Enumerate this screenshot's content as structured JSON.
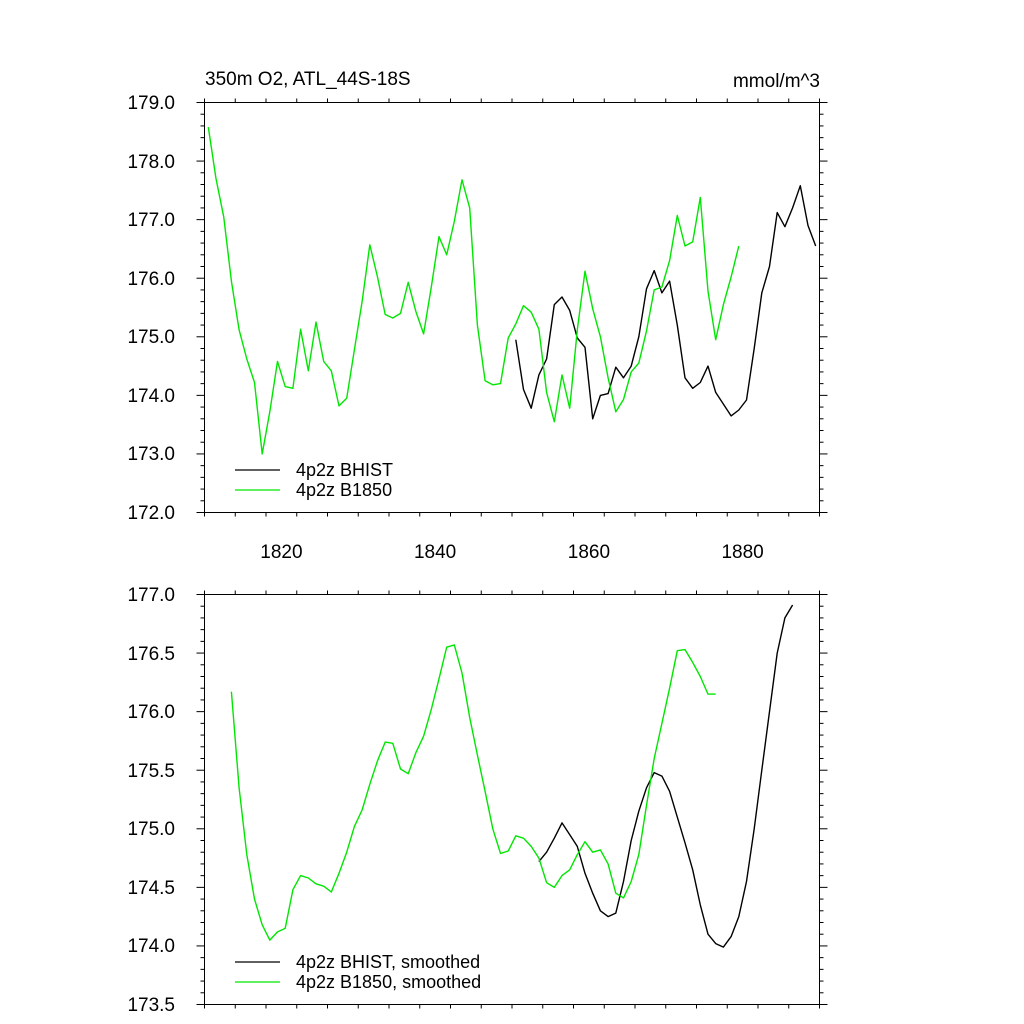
{
  "chart_data": [
    {
      "type": "line",
      "title": "350m O2, ATL_44S-18S",
      "units": "mmol/m^3",
      "xlim": [
        1810,
        1890
      ],
      "ylim": [
        172.0,
        179.0
      ],
      "xticks": [
        1820,
        1840,
        1860,
        1880
      ],
      "xtick_labels": [
        "1820",
        "1840",
        "1860",
        "1880"
      ],
      "yticks": [
        172.0,
        173.0,
        174.0,
        175.0,
        176.0,
        177.0,
        178.0,
        179.0
      ],
      "ytick_labels": [
        "172.0",
        "173.0",
        "174.0",
        "175.0",
        "176.0",
        "177.0",
        "178.0",
        "179.0"
      ],
      "series": [
        {
          "name": "4p2z BHIST",
          "color": "#000000",
          "x": [
            1850.5,
            1851.5,
            1852.5,
            1853.5,
            1854.5,
            1855.5,
            1856.5,
            1857.5,
            1858.5,
            1859.5,
            1860.5,
            1861.5,
            1862.5,
            1863.5,
            1864.5,
            1865.5,
            1866.5,
            1867.5,
            1868.5,
            1869.5,
            1870.5,
            1871.5,
            1872.5,
            1873.5,
            1874.5,
            1875.5,
            1876.5,
            1877.5,
            1878.5,
            1879.5,
            1880.5,
            1881.5,
            1882.5,
            1883.5,
            1884.5,
            1885.5,
            1886.5,
            1887.5,
            1888.5,
            1889.5
          ],
          "values": [
            174.95,
            174.1,
            173.78,
            174.35,
            174.62,
            175.55,
            175.68,
            175.45,
            174.98,
            174.82,
            173.6,
            174.0,
            174.03,
            174.48,
            174.3,
            174.5,
            175.0,
            175.82,
            176.13,
            175.75,
            175.95,
            175.2,
            174.3,
            174.12,
            174.22,
            174.5,
            174.05,
            173.85,
            173.65,
            173.75,
            173.92,
            174.8,
            175.75,
            176.2,
            177.12,
            176.88,
            177.2,
            177.58,
            176.9,
            176.55
          ]
        },
        {
          "name": "4p2z B1850",
          "color": "#00e600",
          "x": [
            1810.5,
            1811.5,
            1812.5,
            1813.5,
            1814.5,
            1815.5,
            1816.5,
            1817.5,
            1818.5,
            1819.5,
            1820.5,
            1821.5,
            1822.5,
            1823.5,
            1824.5,
            1825.5,
            1826.5,
            1827.5,
            1828.5,
            1829.5,
            1830.5,
            1831.5,
            1832.5,
            1833.5,
            1834.5,
            1835.5,
            1836.5,
            1837.5,
            1838.5,
            1839.5,
            1840.5,
            1841.5,
            1842.5,
            1843.5,
            1844.5,
            1845.5,
            1846.5,
            1847.5,
            1848.5,
            1849.5,
            1850.5,
            1851.5,
            1852.5,
            1853.5,
            1854.5,
            1855.5,
            1856.5,
            1857.5,
            1858.5,
            1859.5,
            1860.5,
            1861.5,
            1862.5,
            1863.5,
            1864.5,
            1865.5,
            1866.5,
            1867.5,
            1868.5,
            1869.5,
            1870.5,
            1871.5,
            1872.5,
            1873.5,
            1874.5,
            1875.5,
            1876.5,
            1877.5,
            1878.5,
            1879.5
          ],
          "values": [
            178.58,
            177.7,
            177.05,
            175.95,
            175.12,
            174.62,
            174.22,
            173.0,
            173.72,
            174.58,
            174.15,
            174.12,
            175.13,
            174.42,
            175.25,
            174.58,
            174.42,
            173.82,
            173.95,
            174.78,
            175.6,
            176.57,
            176.02,
            175.38,
            175.32,
            175.4,
            175.93,
            175.43,
            175.05,
            175.85,
            176.71,
            176.4,
            176.97,
            177.68,
            177.2,
            175.2,
            174.25,
            174.18,
            174.2,
            174.98,
            175.22,
            175.53,
            175.42,
            175.13,
            174.05,
            173.55,
            174.35,
            173.78,
            175.12,
            176.12,
            175.48,
            175.0,
            174.3,
            173.72,
            173.93,
            174.4,
            174.55,
            175.1,
            175.8,
            175.85,
            176.3,
            177.07,
            176.55,
            176.62,
            177.38,
            175.78,
            174.95,
            175.55,
            176.02,
            176.55
          ]
        }
      ],
      "legend": {
        "position": "bottom-left",
        "entries": [
          "4p2z BHIST",
          "4p2z B1850"
        ]
      }
    },
    {
      "type": "line",
      "title": "",
      "xlim": [
        1810,
        1890
      ],
      "ylim": [
        173.5,
        177.0
      ],
      "xticks": [
        1820,
        1840,
        1860,
        1880
      ],
      "yticks": [
        173.5,
        174.0,
        174.5,
        175.0,
        175.5,
        176.0,
        176.5,
        177.0
      ],
      "ytick_labels": [
        "173.5",
        "174.0",
        "174.5",
        "175.0",
        "175.5",
        "176.0",
        "176.5",
        "177.0"
      ],
      "series": [
        {
          "name": "4p2z BHIST, smoothed",
          "color": "#000000",
          "x": [
            1853.5,
            1854.5,
            1855.5,
            1856.5,
            1857.5,
            1858.5,
            1859.5,
            1860.5,
            1861.5,
            1862.5,
            1863.5,
            1864.5,
            1865.5,
            1866.5,
            1867.5,
            1868.5,
            1869.5,
            1870.5,
            1871.5,
            1872.5,
            1873.5,
            1874.5,
            1875.5,
            1876.5,
            1877.5,
            1878.5,
            1879.5,
            1880.5,
            1881.5,
            1882.5,
            1883.5,
            1884.5,
            1885.5,
            1886.5
          ],
          "values": [
            174.72,
            174.8,
            174.92,
            175.05,
            174.95,
            174.85,
            174.62,
            174.45,
            174.3,
            174.25,
            174.28,
            174.55,
            174.9,
            175.15,
            175.35,
            175.48,
            175.45,
            175.32,
            175.1,
            174.88,
            174.65,
            174.35,
            174.1,
            174.02,
            173.99,
            174.08,
            174.25,
            174.55,
            175.0,
            175.5,
            176.0,
            176.5,
            176.8,
            176.91
          ]
        },
        {
          "name": "4p2z B1850, smoothed",
          "color": "#00e600",
          "x": [
            1813.5,
            1814.5,
            1815.5,
            1816.5,
            1817.5,
            1818.5,
            1819.5,
            1820.5,
            1821.5,
            1822.5,
            1823.5,
            1824.5,
            1825.5,
            1826.5,
            1827.5,
            1828.5,
            1829.5,
            1830.5,
            1831.5,
            1832.5,
            1833.5,
            1834.5,
            1835.5,
            1836.5,
            1837.5,
            1838.5,
            1839.5,
            1840.5,
            1841.5,
            1842.5,
            1843.5,
            1844.5,
            1845.5,
            1846.5,
            1847.5,
            1848.5,
            1849.5,
            1850.5,
            1851.5,
            1852.5,
            1853.5,
            1854.5,
            1855.5,
            1856.5,
            1857.5,
            1858.5,
            1859.5,
            1860.5,
            1861.5,
            1862.5,
            1863.5,
            1864.5,
            1865.5,
            1866.5,
            1867.5,
            1868.5,
            1869.5,
            1870.5,
            1871.5,
            1872.5,
            1873.5,
            1874.5,
            1875.5,
            1876.5
          ],
          "values": [
            176.17,
            175.35,
            174.78,
            174.4,
            174.18,
            174.05,
            174.12,
            174.15,
            174.48,
            174.6,
            174.58,
            174.53,
            174.51,
            174.46,
            174.62,
            174.8,
            175.02,
            175.16,
            175.38,
            175.58,
            175.74,
            175.73,
            175.51,
            175.47,
            175.65,
            175.79,
            176.02,
            176.28,
            176.55,
            176.57,
            176.33,
            175.95,
            175.63,
            175.32,
            175.0,
            174.79,
            174.81,
            174.94,
            174.92,
            174.85,
            174.75,
            174.54,
            174.5,
            174.6,
            174.65,
            174.78,
            174.89,
            174.8,
            174.82,
            174.7,
            174.45,
            174.41,
            174.55,
            174.78,
            175.2,
            175.6,
            175.9,
            176.2,
            176.52,
            176.53,
            176.42,
            176.3,
            176.15,
            176.15
          ]
        }
      ],
      "legend": {
        "position": "bottom-left",
        "entries": [
          "4p2z BHIST, smoothed",
          "4p2z B1850, smoothed"
        ]
      }
    }
  ]
}
